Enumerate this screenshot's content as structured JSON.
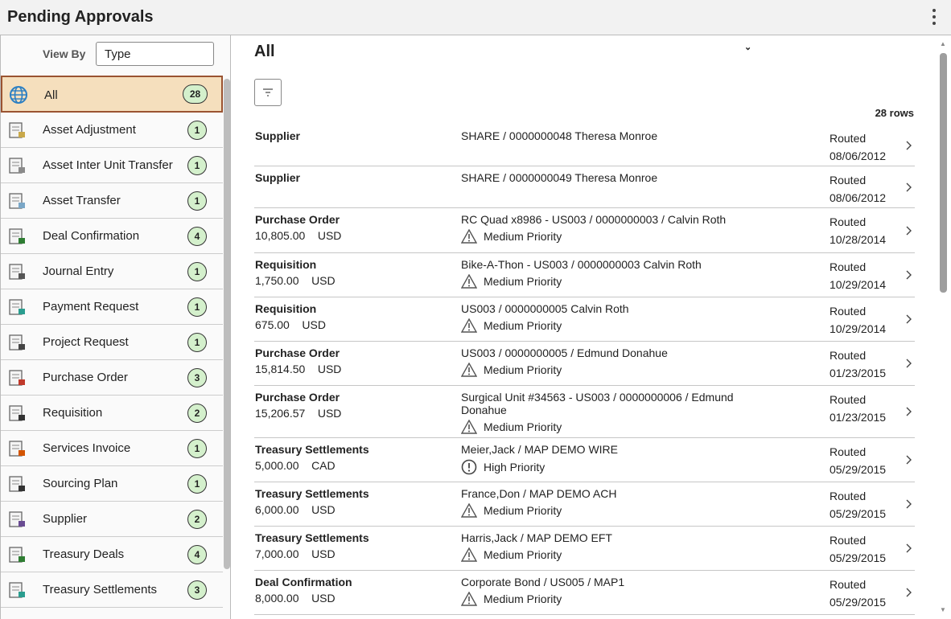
{
  "header": {
    "title": "Pending Approvals",
    "menu_icon": "kebab-icon"
  },
  "sidebar": {
    "view_by_label": "View By",
    "view_by_value": "Type",
    "items": [
      {
        "label": "All",
        "count": "28",
        "icon": "globe-icon",
        "selected": true
      },
      {
        "label": "Asset Adjustment",
        "count": "1",
        "icon": "asset-adjustment-icon"
      },
      {
        "label": "Asset Inter Unit Transfer",
        "count": "1",
        "icon": "asset-inter-unit-icon"
      },
      {
        "label": "Asset Transfer",
        "count": "1",
        "icon": "asset-transfer-icon"
      },
      {
        "label": "Deal Confirmation",
        "count": "4",
        "icon": "deal-confirmation-icon"
      },
      {
        "label": "Journal Entry",
        "count": "1",
        "icon": "journal-entry-icon"
      },
      {
        "label": "Payment Request",
        "count": "1",
        "icon": "payment-request-icon"
      },
      {
        "label": "Project Request",
        "count": "1",
        "icon": "project-request-icon"
      },
      {
        "label": "Purchase Order",
        "count": "3",
        "icon": "purchase-order-icon"
      },
      {
        "label": "Requisition",
        "count": "2",
        "icon": "cart-icon"
      },
      {
        "label": "Services Invoice",
        "count": "1",
        "icon": "services-invoice-icon"
      },
      {
        "label": "Sourcing Plan",
        "count": "1",
        "icon": "clipboard-icon"
      },
      {
        "label": "Supplier",
        "count": "2",
        "icon": "supplier-icon"
      },
      {
        "label": "Treasury Deals",
        "count": "4",
        "icon": "treasury-deals-icon"
      },
      {
        "label": "Treasury Settlements",
        "count": "3",
        "icon": "treasury-settlements-icon"
      }
    ]
  },
  "main": {
    "title": "All",
    "row_count": "28 rows",
    "rows": [
      {
        "type": "Supplier",
        "amount": "",
        "currency": "",
        "desc": "SHARE / 0000000048  Theresa Monroe",
        "priority": "",
        "status": "Routed",
        "date": "08/06/2012"
      },
      {
        "type": "Supplier",
        "amount": "",
        "currency": "",
        "desc": "SHARE / 0000000049  Theresa Monroe",
        "priority": "",
        "status": "Routed",
        "date": "08/06/2012"
      },
      {
        "type": "Purchase Order",
        "amount": "10,805.00",
        "currency": "USD",
        "desc": "RC Quad x8986 - US003 / 0000000003 / Calvin Roth",
        "priority": "Medium Priority",
        "status": "Routed",
        "date": "10/28/2014"
      },
      {
        "type": "Requisition",
        "amount": "1,750.00",
        "currency": "USD",
        "desc": "Bike-A-Thon - US003 / 0000000003 Calvin Roth",
        "priority": "Medium Priority",
        "status": "Routed",
        "date": "10/29/2014"
      },
      {
        "type": "Requisition",
        "amount": "675.00",
        "currency": "USD",
        "desc": "US003 / 0000000005 Calvin Roth",
        "priority": "Medium Priority",
        "status": "Routed",
        "date": "10/29/2014"
      },
      {
        "type": "Purchase Order",
        "amount": "15,814.50",
        "currency": "USD",
        "desc": "US003 / 0000000005 / Edmund Donahue",
        "priority": "Medium Priority",
        "status": "Routed",
        "date": "01/23/2015"
      },
      {
        "type": "Purchase Order",
        "amount": "15,206.57",
        "currency": "USD",
        "desc": "Surgical Unit #34563 - US003 / 0000000006 / Edmund Donahue",
        "priority": "Medium Priority",
        "status": "Routed",
        "date": "01/23/2015"
      },
      {
        "type": "Treasury Settlements",
        "amount": "5,000.00",
        "currency": "CAD",
        "desc": "Meier,Jack / MAP DEMO WIRE",
        "priority": "High Priority",
        "status": "Routed",
        "date": "05/29/2015"
      },
      {
        "type": "Treasury Settlements",
        "amount": "6,000.00",
        "currency": "USD",
        "desc": "France,Don / MAP DEMO ACH",
        "priority": "Medium Priority",
        "status": "Routed",
        "date": "05/29/2015"
      },
      {
        "type": "Treasury Settlements",
        "amount": "7,000.00",
        "currency": "USD",
        "desc": "Harris,Jack / MAP DEMO EFT",
        "priority": "Medium Priority",
        "status": "Routed",
        "date": "05/29/2015"
      },
      {
        "type": "Deal Confirmation",
        "amount": "8,000.00",
        "currency": "USD",
        "desc": "Corporate Bond / US005 / MAP1",
        "priority": "Medium Priority",
        "status": "Routed",
        "date": "05/29/2015"
      }
    ]
  },
  "colors": {
    "selected_bg": "#f5dfbd",
    "selected_border": "#9a5331",
    "badge_bg": "#d4f0cc"
  }
}
